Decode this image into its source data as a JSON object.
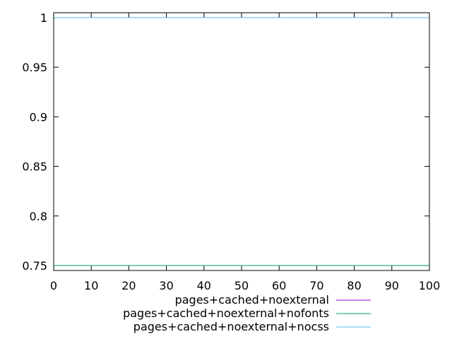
{
  "chart_data": {
    "type": "line",
    "x": [
      0,
      100
    ],
    "xlim": [
      0,
      100
    ],
    "ylim": [
      0.745,
      1.005
    ],
    "x_ticks": [
      "0",
      "10",
      "20",
      "30",
      "40",
      "50",
      "60",
      "70",
      "80",
      "90",
      "100"
    ],
    "y_ticks": [
      "0.75",
      "0.8",
      "0.85",
      "0.9",
      "0.95",
      "1"
    ],
    "grid": false,
    "legend_position": "bottom-right",
    "series": [
      {
        "name": "pages+cached+noexternal",
        "color": "#9400d3",
        "values": [
          0.75,
          0.75
        ]
      },
      {
        "name": "pages+cached+noexternal+nofonts",
        "color": "#009e73",
        "values": [
          0.75,
          0.75
        ]
      },
      {
        "name": "pages+cached+noexternal+nocss",
        "color": "#56b4e9",
        "values": [
          1,
          1
        ]
      }
    ]
  }
}
